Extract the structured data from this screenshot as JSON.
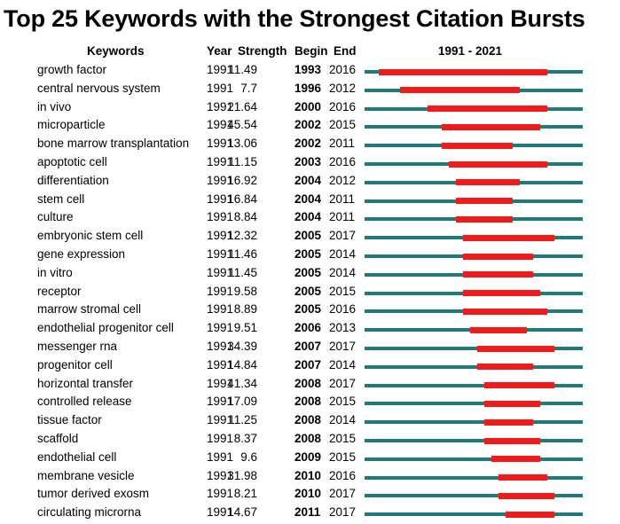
{
  "title": "Top 25 Keywords with the Strongest Citation Bursts",
  "header": {
    "keywords": "Keywords",
    "year": "Year",
    "strength": "Strength",
    "begin": "Begin",
    "end": "End",
    "range": "1991 - 2021"
  },
  "colors": {
    "track": "#1f7a78",
    "burst": "#f01b1b"
  },
  "chart_data": {
    "type": "table",
    "timeline": {
      "start": 1991,
      "end": 2021
    },
    "columns": [
      "Keywords",
      "Year",
      "Strength",
      "Begin",
      "End",
      "1991 - 2021"
    ],
    "rows": [
      {
        "keyword": "growth factor",
        "year": "1991",
        "strength": "11.49",
        "begin": "1993",
        "end": "2016"
      },
      {
        "keyword": "central nervous system",
        "year": "1991",
        "strength": "7.7",
        "begin": "1996",
        "end": "2012"
      },
      {
        "keyword": "in vivo",
        "year": "1991",
        "strength": "21.64",
        "begin": "2000",
        "end": "2016"
      },
      {
        "keyword": "microparticle",
        "year": "1991",
        "strength": "45.54",
        "begin": "2002",
        "end": "2015"
      },
      {
        "keyword": "bone marrow transplantation",
        "year": "1991",
        "strength": "13.06",
        "begin": "2002",
        "end": "2011"
      },
      {
        "keyword": "apoptotic cell",
        "year": "1991",
        "strength": "11.15",
        "begin": "2003",
        "end": "2016"
      },
      {
        "keyword": "differentiation",
        "year": "1991",
        "strength": "16.92",
        "begin": "2004",
        "end": "2012"
      },
      {
        "keyword": "stem cell",
        "year": "1991",
        "strength": "16.84",
        "begin": "2004",
        "end": "2011"
      },
      {
        "keyword": "culture",
        "year": "1991",
        "strength": "8.84",
        "begin": "2004",
        "end": "2011"
      },
      {
        "keyword": "embryonic stem cell",
        "year": "1991",
        "strength": "12.32",
        "begin": "2005",
        "end": "2017"
      },
      {
        "keyword": "gene expression",
        "year": "1991",
        "strength": "11.46",
        "begin": "2005",
        "end": "2014"
      },
      {
        "keyword": "in vitro",
        "year": "1991",
        "strength": "11.45",
        "begin": "2005",
        "end": "2014"
      },
      {
        "keyword": "receptor",
        "year": "1991",
        "strength": "9.58",
        "begin": "2005",
        "end": "2015"
      },
      {
        "keyword": "marrow stromal cell",
        "year": "1991",
        "strength": "8.89",
        "begin": "2005",
        "end": "2016"
      },
      {
        "keyword": "endothelial progenitor cell",
        "year": "1991",
        "strength": "9.51",
        "begin": "2006",
        "end": "2013"
      },
      {
        "keyword": "messenger rna",
        "year": "1991",
        "strength": "34.39",
        "begin": "2007",
        "end": "2017"
      },
      {
        "keyword": "progenitor cell",
        "year": "1991",
        "strength": "14.84",
        "begin": "2007",
        "end": "2014"
      },
      {
        "keyword": "horizontal transfer",
        "year": "1991",
        "strength": "41.34",
        "begin": "2008",
        "end": "2017"
      },
      {
        "keyword": "controlled release",
        "year": "1991",
        "strength": "17.09",
        "begin": "2008",
        "end": "2015"
      },
      {
        "keyword": "tissue factor",
        "year": "1991",
        "strength": "11.25",
        "begin": "2008",
        "end": "2014"
      },
      {
        "keyword": "scaffold",
        "year": "1991",
        "strength": "8.37",
        "begin": "2008",
        "end": "2015"
      },
      {
        "keyword": "endothelial cell",
        "year": "1991",
        "strength": "9.6",
        "begin": "2009",
        "end": "2015"
      },
      {
        "keyword": "membrane vesicle",
        "year": "1991",
        "strength": "31.98",
        "begin": "2010",
        "end": "2016"
      },
      {
        "keyword": "tumor derived exosm",
        "year": "1991",
        "strength": "8.21",
        "begin": "2010",
        "end": "2017"
      },
      {
        "keyword": "circulating microrna",
        "year": "1991",
        "strength": "14.67",
        "begin": "2011",
        "end": "2017"
      }
    ]
  }
}
